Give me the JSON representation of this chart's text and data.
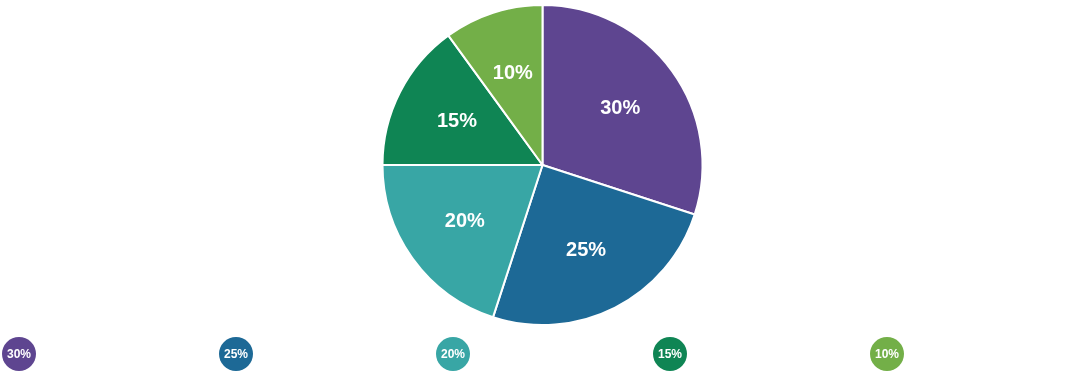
{
  "chart_data": {
    "type": "pie",
    "categories": [
      null,
      null,
      null,
      null,
      null
    ],
    "values": [
      30,
      25,
      20,
      15,
      10
    ],
    "value_labels": [
      "30%",
      "25%",
      "20%",
      "15%",
      "10%"
    ],
    "colors": [
      "#5e4590",
      "#1d6996",
      "#38a6a5",
      "#0f8554",
      "#73af48"
    ]
  }
}
